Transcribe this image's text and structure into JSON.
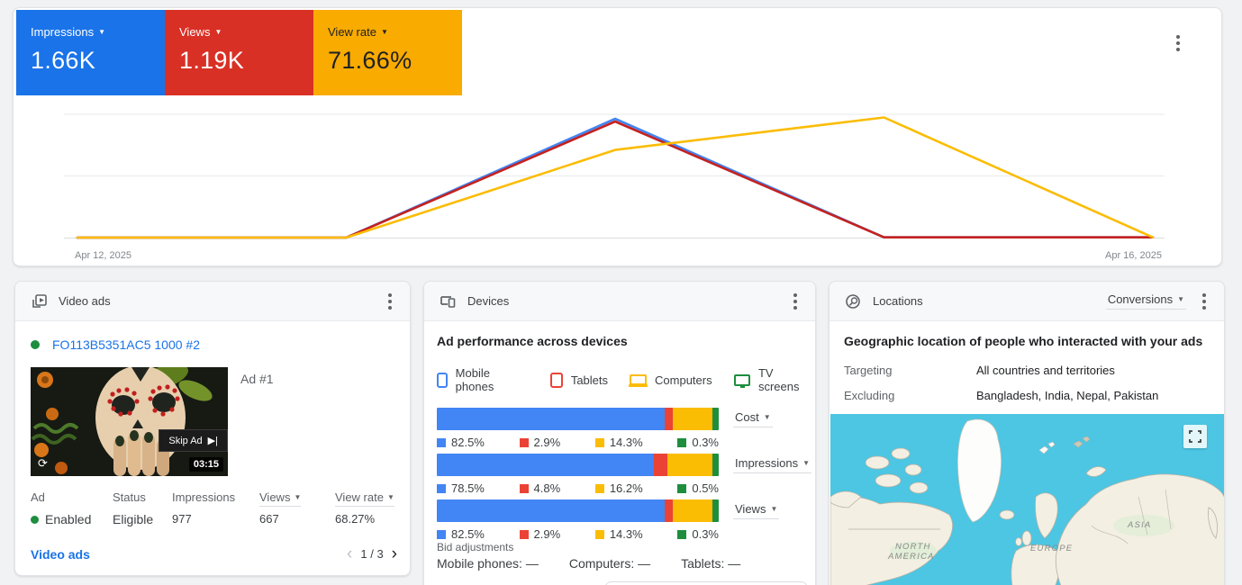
{
  "icons": {
    "dropdown_arrow": "▼",
    "chevron_left": "‹",
    "chevron_right": "›",
    "replay": "⟳",
    "skip_ad_glyph": "▶|"
  },
  "overview": {
    "metrics": [
      {
        "label": "Impressions",
        "value": "1.66K",
        "color": "#1a73e8"
      },
      {
        "label": "Views",
        "value": "1.19K",
        "color": "#d93025"
      },
      {
        "label": "View rate",
        "value": "71.66%",
        "color": "#f9ab00"
      }
    ],
    "date_start": "Apr 12, 2025",
    "date_end": "Apr 16, 2025"
  },
  "chart_data": {
    "type": "line",
    "x": [
      "Apr 12, 2025",
      "Apr 13, 2025",
      "Apr 14, 2025",
      "Apr 15, 2025",
      "Apr 16, 2025"
    ],
    "x_tick_labels_shown": [
      "Apr 12, 2025",
      "Apr 16, 2025"
    ],
    "series": [
      {
        "name": "Impressions",
        "color": "#4285f4",
        "values_relative": [
          0.004,
          0.004,
          0.975,
          0.006,
          0.006
        ]
      },
      {
        "name": "Views",
        "color": "#c5221f",
        "values_relative": [
          0.004,
          0.004,
          0.952,
          0.006,
          0.006
        ]
      },
      {
        "name": "View rate",
        "color": "#fbbc04",
        "values_relative": [
          0.004,
          0.004,
          0.72,
          0.985,
          0.006
        ]
      }
    ],
    "totals": {
      "Impressions": "1.66K",
      "Views": "1.19K",
      "View rate": "71.66%"
    },
    "xlabel": "",
    "ylabel": "",
    "grid": "3 horizontal gridlines, no y tick labels; each series scaled to its own max"
  },
  "video_ads": {
    "title": "Video ads",
    "campaign_name": "FO113B5351AC5 1000 #2",
    "ad_label": "Ad #1",
    "thumbnail": {
      "skip_label": "Skip Ad",
      "duration": "03:15"
    },
    "table": {
      "headers": [
        "Ad",
        "Status",
        "Impressions",
        "Views",
        "View rate"
      ],
      "row": {
        "ad_status": "Enabled",
        "status": "Eligible",
        "impressions": "977",
        "views": "667",
        "view_rate": "68.27%"
      }
    },
    "footer_link": "Video ads",
    "pagination": "1 / 3"
  },
  "devices": {
    "title": "Devices",
    "subtitle": "Ad performance across devices",
    "legend": [
      {
        "label": "Mobile phones",
        "color": "#4285f4"
      },
      {
        "label": "Tablets",
        "color": "#ea4335"
      },
      {
        "label": "Computers",
        "color": "#fbbc04"
      },
      {
        "label": "TV screens",
        "color": "#1e8e3e"
      }
    ],
    "bars": [
      {
        "metric": "Cost",
        "values": [
          82.5,
          2.9,
          14.3,
          0.3
        ],
        "labels": [
          "82.5%",
          "2.9%",
          "14.3%",
          "0.3%"
        ]
      },
      {
        "metric": "Impressions",
        "values": [
          78.5,
          4.8,
          16.2,
          0.5
        ],
        "labels": [
          "78.5%",
          "4.8%",
          "16.2%",
          "0.5%"
        ]
      },
      {
        "metric": "Views",
        "values": [
          82.5,
          2.9,
          14.3,
          0.3
        ],
        "labels": [
          "82.5%",
          "2.9%",
          "14.3%",
          "0.3%"
        ]
      }
    ],
    "bid_adjustments_label": "Bid adjustments",
    "bid_adjustments": [
      {
        "label": "Mobile phones:",
        "value": "—"
      },
      {
        "label": "Computers:",
        "value": "—"
      },
      {
        "label": "Tablets:",
        "value": "—"
      }
    ]
  },
  "locations": {
    "title": "Locations",
    "metric_dropdown": "Conversions",
    "subtitle": "Geographic location of people who interacted with your ads",
    "targeting_label": "Targeting",
    "targeting_value": "All countries and territories",
    "excluding_label": "Excluding",
    "excluding_value": "Bangladesh, India, Nepal, Pakistan",
    "map_labels": [
      "NORTH",
      "AMERICA",
      "EUROPE",
      "ASIA"
    ]
  }
}
